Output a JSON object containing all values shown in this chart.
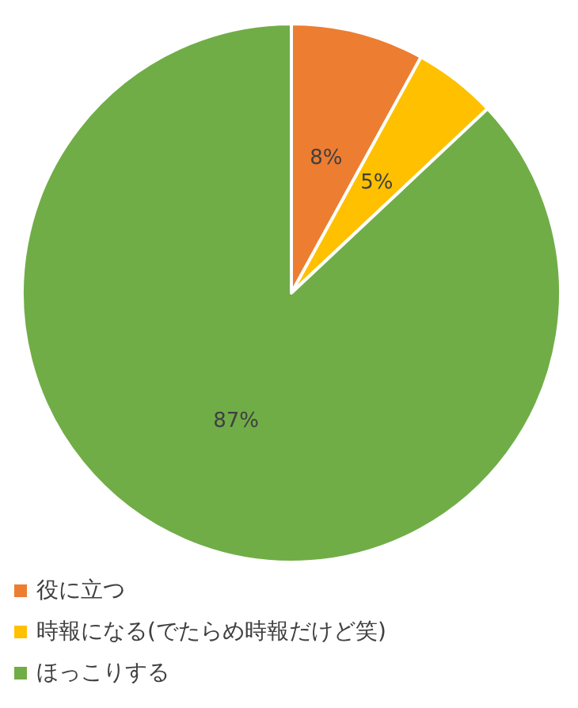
{
  "chart_data": {
    "type": "pie",
    "categories": [
      "役に立つ",
      "時報になる(でたらめ時報だけど笑)",
      "ほっこりする"
    ],
    "values": [
      8,
      5,
      87
    ],
    "colors": [
      "#ed7d31",
      "#ffc000",
      "#70ad47"
    ],
    "value_labels": [
      "8%",
      "5%",
      "87%"
    ],
    "legend": "bottom left"
  }
}
